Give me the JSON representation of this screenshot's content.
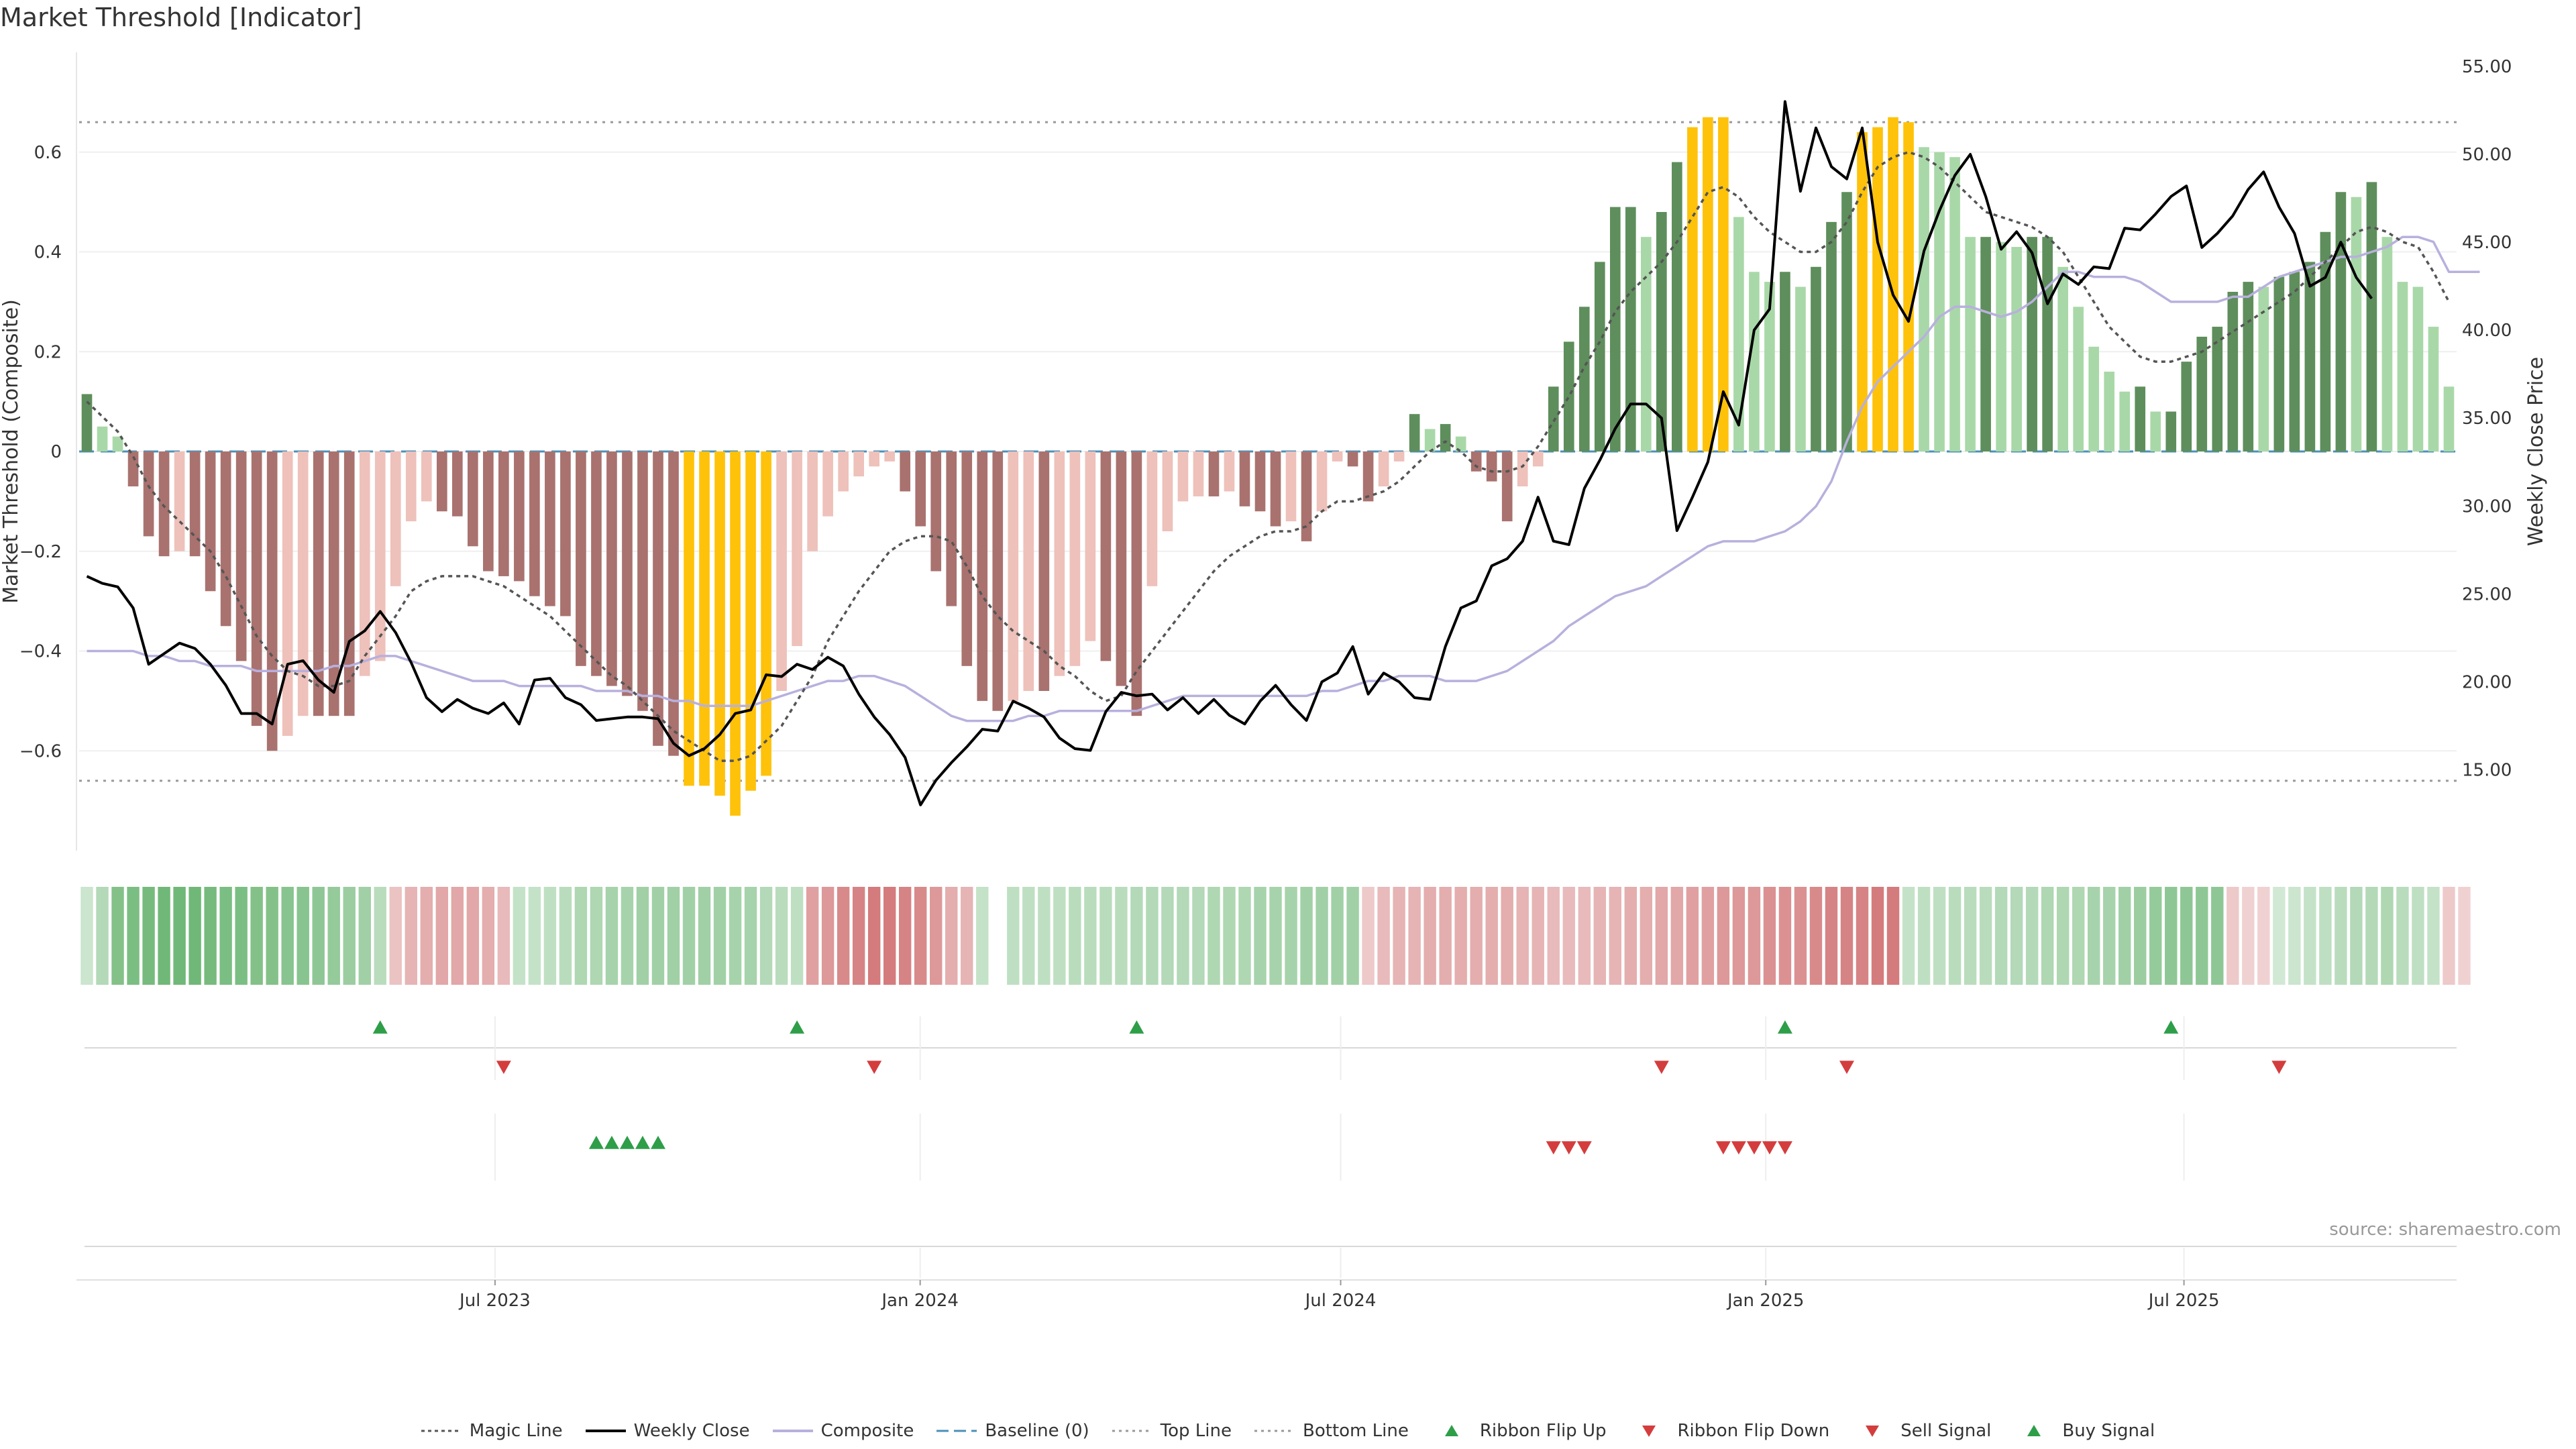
{
  "title": "Market Threshold [Indicator]",
  "source": "source: sharemaestro.com",
  "colors": {
    "neg_strong": "#a9726f",
    "neg_weak": "#eec1bb",
    "pos_strong": "#5e8e5c",
    "pos_weak": "#a9d8a8",
    "extreme": "#ffc20a",
    "weekly_close": "#000000",
    "magic_line": "#555555",
    "composite": "#b8b0dd",
    "baseline": "#4a90b8",
    "threshold": "#999999",
    "flip_up": "#2e9e48",
    "flip_down": "#d43d3d",
    "ribbon_red": "#c8585a",
    "ribbon_green": "#70b878"
  },
  "legend": [
    {
      "label": "Magic Line",
      "icon": "dotted-line"
    },
    {
      "label": "Weekly Close",
      "icon": "solid-line"
    },
    {
      "label": "Composite",
      "icon": "lavender-line"
    },
    {
      "label": "Baseline (0)",
      "icon": "dashed-line"
    },
    {
      "label": "Top Line",
      "icon": "dotted-line-light"
    },
    {
      "label": "Bottom Line",
      "icon": "dotted-line-light"
    },
    {
      "label": "Ribbon Flip Up",
      "icon": "triangle-up-icon"
    },
    {
      "label": "Ribbon Flip Down",
      "icon": "triangle-down-icon"
    },
    {
      "label": "Sell Signal",
      "icon": "triangle-down-icon"
    },
    {
      "label": "Buy Signal",
      "icon": "triangle-up-icon"
    }
  ],
  "chart_data": {
    "type": "bar",
    "x_start": "2023-01-02",
    "x_end": "2025-10-27",
    "xticks": [
      {
        "date": "2023-07-01",
        "label": "Jul 2023"
      },
      {
        "date": "2024-01-01",
        "label": "Jan 2024"
      },
      {
        "date": "2024-07-01",
        "label": "Jul 2024"
      },
      {
        "date": "2025-01-01",
        "label": "Jan 2025"
      },
      {
        "date": "2025-07-01",
        "label": "Jul 2025"
      }
    ],
    "ylabel": "Market Threshold (Composite)",
    "ylim": [
      -0.8,
      0.8
    ],
    "yticks": [
      -0.6,
      -0.4,
      -0.2,
      0,
      0.2,
      0.4,
      0.6
    ],
    "ytick_labels": [
      "−0.6",
      "−0.4",
      "−0.2",
      "0",
      "0.2",
      "0.4",
      "0.6"
    ],
    "y2label": "Weekly Close Price",
    "y2lim": [
      10.4,
      55.8
    ],
    "y2ticks": [
      "15.00",
      "20.00",
      "25.00",
      "30.00",
      "35.00",
      "40.00",
      "45.00",
      "50.00",
      "55.00"
    ],
    "top_line": 0.66,
    "bottom_line": -0.66,
    "grid": true,
    "legend_position": "bottom",
    "composite": [
      0.115,
      0.05,
      0.03,
      -0.07,
      -0.17,
      -0.21,
      -0.2,
      -0.21,
      -0.28,
      -0.35,
      -0.42,
      -0.55,
      -0.6,
      -0.57,
      -0.53,
      -0.53,
      -0.53,
      -0.53,
      -0.45,
      -0.42,
      -0.27,
      -0.14,
      -0.1,
      -0.12,
      -0.13,
      -0.19,
      -0.24,
      -0.25,
      -0.26,
      -0.29,
      -0.31,
      -0.33,
      -0.43,
      -0.45,
      -0.47,
      -0.49,
      -0.52,
      -0.59,
      -0.61,
      -0.67,
      -0.67,
      -0.69,
      -0.73,
      -0.68,
      -0.65,
      -0.48,
      -0.39,
      -0.2,
      -0.13,
      -0.08,
      -0.05,
      -0.03,
      -0.02,
      -0.08,
      -0.15,
      -0.24,
      -0.31,
      -0.43,
      -0.5,
      -0.52,
      -0.5,
      -0.48,
      -0.48,
      -0.45,
      -0.43,
      -0.38,
      -0.42,
      -0.47,
      -0.53,
      -0.27,
      -0.16,
      -0.1,
      -0.09,
      -0.09,
      -0.08,
      -0.11,
      -0.12,
      -0.15,
      -0.14,
      -0.18,
      -0.12,
      -0.02,
      -0.03,
      -0.1,
      -0.07,
      -0.02,
      0.075,
      0.045,
      0.055,
      0.03,
      -0.04,
      -0.06,
      -0.14,
      -0.07,
      -0.03,
      0.13,
      0.22,
      0.29,
      0.38,
      0.49,
      0.49,
      0.43,
      0.48,
      0.58,
      0.65,
      0.67,
      0.67,
      0.47,
      0.36,
      0.34,
      0.36,
      0.33,
      0.37,
      0.46,
      0.52,
      0.64,
      0.65,
      0.67,
      0.66,
      0.61,
      0.6,
      0.59,
      0.43,
      0.43,
      0.42,
      0.41,
      0.43,
      0.43,
      0.37,
      0.29,
      0.21,
      0.16,
      0.12,
      0.13,
      0.08,
      0.08,
      0.18,
      0.23,
      0.25,
      0.32,
      0.34,
      0.33,
      0.35,
      0.36,
      0.38,
      0.44,
      0.52,
      0.51,
      0.54,
      0.43,
      0.34,
      0.33,
      0.25,
      0.13
    ],
    "weekly_close": [
      26.0,
      25.6,
      25.4,
      24.2,
      21.0,
      21.6,
      22.2,
      21.9,
      21.0,
      19.8,
      18.2,
      18.2,
      17.6,
      21.0,
      21.2,
      20.1,
      19.4,
      22.3,
      22.9,
      24.0,
      22.8,
      21.1,
      19.1,
      18.3,
      19.0,
      18.5,
      18.2,
      18.8,
      17.6,
      20.1,
      20.2,
      19.1,
      18.7,
      17.8,
      17.9,
      18.0,
      18.0,
      17.9,
      16.5,
      15.8,
      16.2,
      17.0,
      18.2,
      18.4,
      20.4,
      20.3,
      21.0,
      20.7,
      21.4,
      20.9,
      19.3,
      18.0,
      17.0,
      15.7,
      13.0,
      14.4,
      15.4,
      16.3,
      17.3,
      17.2,
      18.9,
      18.5,
      18.0,
      16.8,
      16.2,
      16.1,
      18.3,
      19.4,
      19.2,
      19.3,
      18.4,
      19.1,
      18.2,
      19.0,
      18.1,
      17.6,
      18.9,
      19.8,
      18.7,
      17.8,
      20.0,
      20.5,
      22.0,
      19.3,
      20.5,
      20.0,
      19.1,
      19.0,
      22.0,
      24.2,
      24.6,
      26.6,
      27.0,
      28.0,
      30.5,
      28.0,
      27.8,
      31.0,
      32.6,
      34.4,
      35.8,
      35.8,
      35.0,
      28.6,
      30.5,
      32.5,
      36.5,
      34.6,
      40.0,
      41.2,
      53.0,
      47.9,
      51.5,
      49.3,
      48.6,
      51.5,
      45.0,
      42.0,
      40.5,
      44.5,
      46.8,
      48.8,
      50.0,
      47.6,
      44.6,
      45.6,
      44.4,
      41.5,
      43.2,
      42.6,
      43.6,
      43.5,
      45.8,
      45.7,
      46.6,
      47.6,
      48.2,
      44.7,
      45.5,
      46.5,
      48.0,
      49.0,
      47.0,
      45.5,
      42.5,
      43.0,
      45.0,
      43.0,
      41.8
    ],
    "composite_line": [
      -0.4,
      -0.4,
      -0.4,
      -0.4,
      -0.41,
      -0.41,
      -0.42,
      -0.42,
      -0.43,
      -0.43,
      -0.43,
      -0.44,
      -0.44,
      -0.44,
      -0.44,
      -0.44,
      -0.43,
      -0.43,
      -0.42,
      -0.41,
      -0.41,
      -0.42,
      -0.43,
      -0.44,
      -0.45,
      -0.46,
      -0.46,
      -0.46,
      -0.47,
      -0.47,
      -0.47,
      -0.47,
      -0.47,
      -0.48,
      -0.48,
      -0.48,
      -0.49,
      -0.49,
      -0.5,
      -0.5,
      -0.51,
      -0.51,
      -0.51,
      -0.51,
      -0.5,
      -0.49,
      -0.48,
      -0.47,
      -0.46,
      -0.46,
      -0.45,
      -0.45,
      -0.46,
      -0.47,
      -0.49,
      -0.51,
      -0.53,
      -0.54,
      -0.54,
      -0.54,
      -0.54,
      -0.53,
      -0.53,
      -0.52,
      -0.52,
      -0.52,
      -0.52,
      -0.52,
      -0.52,
      -0.51,
      -0.5,
      -0.49,
      -0.49,
      -0.49,
      -0.49,
      -0.49,
      -0.49,
      -0.49,
      -0.49,
      -0.49,
      -0.48,
      -0.48,
      -0.47,
      -0.46,
      -0.46,
      -0.45,
      -0.45,
      -0.45,
      -0.46,
      -0.46,
      -0.46,
      -0.45,
      -0.44,
      -0.42,
      -0.4,
      -0.38,
      -0.35,
      -0.33,
      -0.31,
      -0.29,
      -0.28,
      -0.27,
      -0.25,
      -0.23,
      -0.21,
      -0.19,
      -0.18,
      -0.18,
      -0.18,
      -0.17,
      -0.16,
      -0.14,
      -0.11,
      -0.06,
      0.02,
      0.09,
      0.14,
      0.17,
      0.2,
      0.23,
      0.27,
      0.29,
      0.29,
      0.28,
      0.27,
      0.28,
      0.3,
      0.33,
      0.36,
      0.36,
      0.35,
      0.35,
      0.35,
      0.34,
      0.32,
      0.3,
      0.3,
      0.3,
      0.3,
      0.31,
      0.31,
      0.33,
      0.35,
      0.36,
      0.37,
      0.38,
      0.39,
      0.39,
      0.4,
      0.41,
      0.43,
      0.43,
      0.42,
      0.36,
      0.36,
      0.36
    ],
    "magic_line": [
      0.1,
      0.07,
      0.04,
      -0.01,
      -0.07,
      -0.11,
      -0.14,
      -0.17,
      -0.2,
      -0.25,
      -0.31,
      -0.37,
      -0.41,
      -0.44,
      -0.45,
      -0.47,
      -0.47,
      -0.46,
      -0.41,
      -0.37,
      -0.33,
      -0.28,
      -0.26,
      -0.25,
      -0.25,
      -0.25,
      -0.26,
      -0.27,
      -0.29,
      -0.31,
      -0.33,
      -0.36,
      -0.39,
      -0.42,
      -0.45,
      -0.47,
      -0.5,
      -0.53,
      -0.56,
      -0.58,
      -0.6,
      -0.62,
      -0.62,
      -0.61,
      -0.58,
      -0.55,
      -0.5,
      -0.45,
      -0.38,
      -0.33,
      -0.28,
      -0.24,
      -0.2,
      -0.18,
      -0.17,
      -0.17,
      -0.18,
      -0.23,
      -0.29,
      -0.33,
      -0.36,
      -0.38,
      -0.4,
      -0.43,
      -0.45,
      -0.48,
      -0.5,
      -0.49,
      -0.44,
      -0.4,
      -0.36,
      -0.32,
      -0.28,
      -0.24,
      -0.21,
      -0.19,
      -0.17,
      -0.16,
      -0.16,
      -0.15,
      -0.12,
      -0.1,
      -0.1,
      -0.09,
      -0.08,
      -0.06,
      -0.03,
      0.0,
      0.02,
      0.0,
      -0.03,
      -0.04,
      -0.04,
      -0.03,
      0.01,
      0.06,
      0.11,
      0.17,
      0.22,
      0.28,
      0.32,
      0.35,
      0.38,
      0.42,
      0.47,
      0.52,
      0.53,
      0.51,
      0.47,
      0.44,
      0.42,
      0.4,
      0.4,
      0.42,
      0.46,
      0.52,
      0.57,
      0.59,
      0.6,
      0.59,
      0.57,
      0.54,
      0.51,
      0.48,
      0.47,
      0.46,
      0.45,
      0.43,
      0.4,
      0.35,
      0.3,
      0.25,
      0.22,
      0.19,
      0.18,
      0.18,
      0.19,
      0.2,
      0.22,
      0.24,
      0.26,
      0.28,
      0.3,
      0.32,
      0.35,
      0.38,
      0.41,
      0.44,
      0.45,
      0.44,
      0.42,
      0.41,
      0.36,
      0.3
    ],
    "ribbon": [
      0.25,
      0.45,
      0.85,
      0.9,
      0.95,
      1.0,
      1.0,
      1.0,
      0.95,
      0.9,
      0.9,
      0.85,
      0.85,
      0.8,
      0.8,
      0.75,
      0.7,
      0.65,
      0.6,
      0.4,
      -0.25,
      -0.35,
      -0.4,
      -0.45,
      -0.45,
      -0.45,
      -0.4,
      -0.3,
      0.3,
      0.3,
      0.35,
      0.4,
      0.5,
      0.5,
      0.55,
      0.55,
      0.6,
      0.6,
      0.6,
      0.6,
      0.6,
      0.6,
      0.55,
      0.55,
      0.45,
      0.4,
      0.35,
      -0.5,
      -0.55,
      -0.65,
      -0.7,
      -0.75,
      -0.75,
      -0.7,
      -0.65,
      -0.55,
      -0.4,
      -0.35,
      0.3,
      null,
      0.35,
      0.35,
      0.35,
      0.35,
      0.4,
      0.4,
      0.4,
      0.4,
      0.45,
      0.45,
      0.45,
      0.45,
      0.45,
      0.5,
      0.5,
      0.5,
      0.55,
      0.55,
      0.55,
      0.6,
      0.6,
      0.6,
      0.6,
      -0.2,
      -0.3,
      -0.35,
      -0.35,
      -0.4,
      -0.4,
      -0.4,
      -0.4,
      -0.4,
      -0.4,
      -0.35,
      -0.35,
      -0.3,
      -0.3,
      -0.3,
      -0.35,
      -0.35,
      -0.4,
      -0.4,
      -0.45,
      -0.45,
      -0.5,
      -0.5,
      -0.55,
      -0.55,
      -0.55,
      -0.6,
      -0.6,
      -0.6,
      -0.65,
      -0.7,
      -0.7,
      -0.7,
      -0.75,
      -0.75,
      0.3,
      0.35,
      0.35,
      0.4,
      0.4,
      0.4,
      0.45,
      0.45,
      0.45,
      0.5,
      0.5,
      0.5,
      0.55,
      0.55,
      0.6,
      0.65,
      0.7,
      0.75,
      0.75,
      0.75,
      0.75,
      -0.2,
      -0.15,
      -0.15,
      0.2,
      0.25,
      0.3,
      0.35,
      0.4,
      0.45,
      0.45,
      0.5,
      0.4,
      0.35,
      0.3,
      -0.2,
      -0.15
    ],
    "ribbon_flip_up": [
      19,
      46,
      68,
      110,
      135
    ],
    "ribbon_flip_down": [
      27,
      51,
      102,
      114,
      142
    ],
    "buy_signal": [
      33,
      34,
      35,
      36,
      37
    ],
    "sell_signal": [
      95,
      96,
      97,
      106,
      107,
      108,
      109,
      110
    ]
  }
}
